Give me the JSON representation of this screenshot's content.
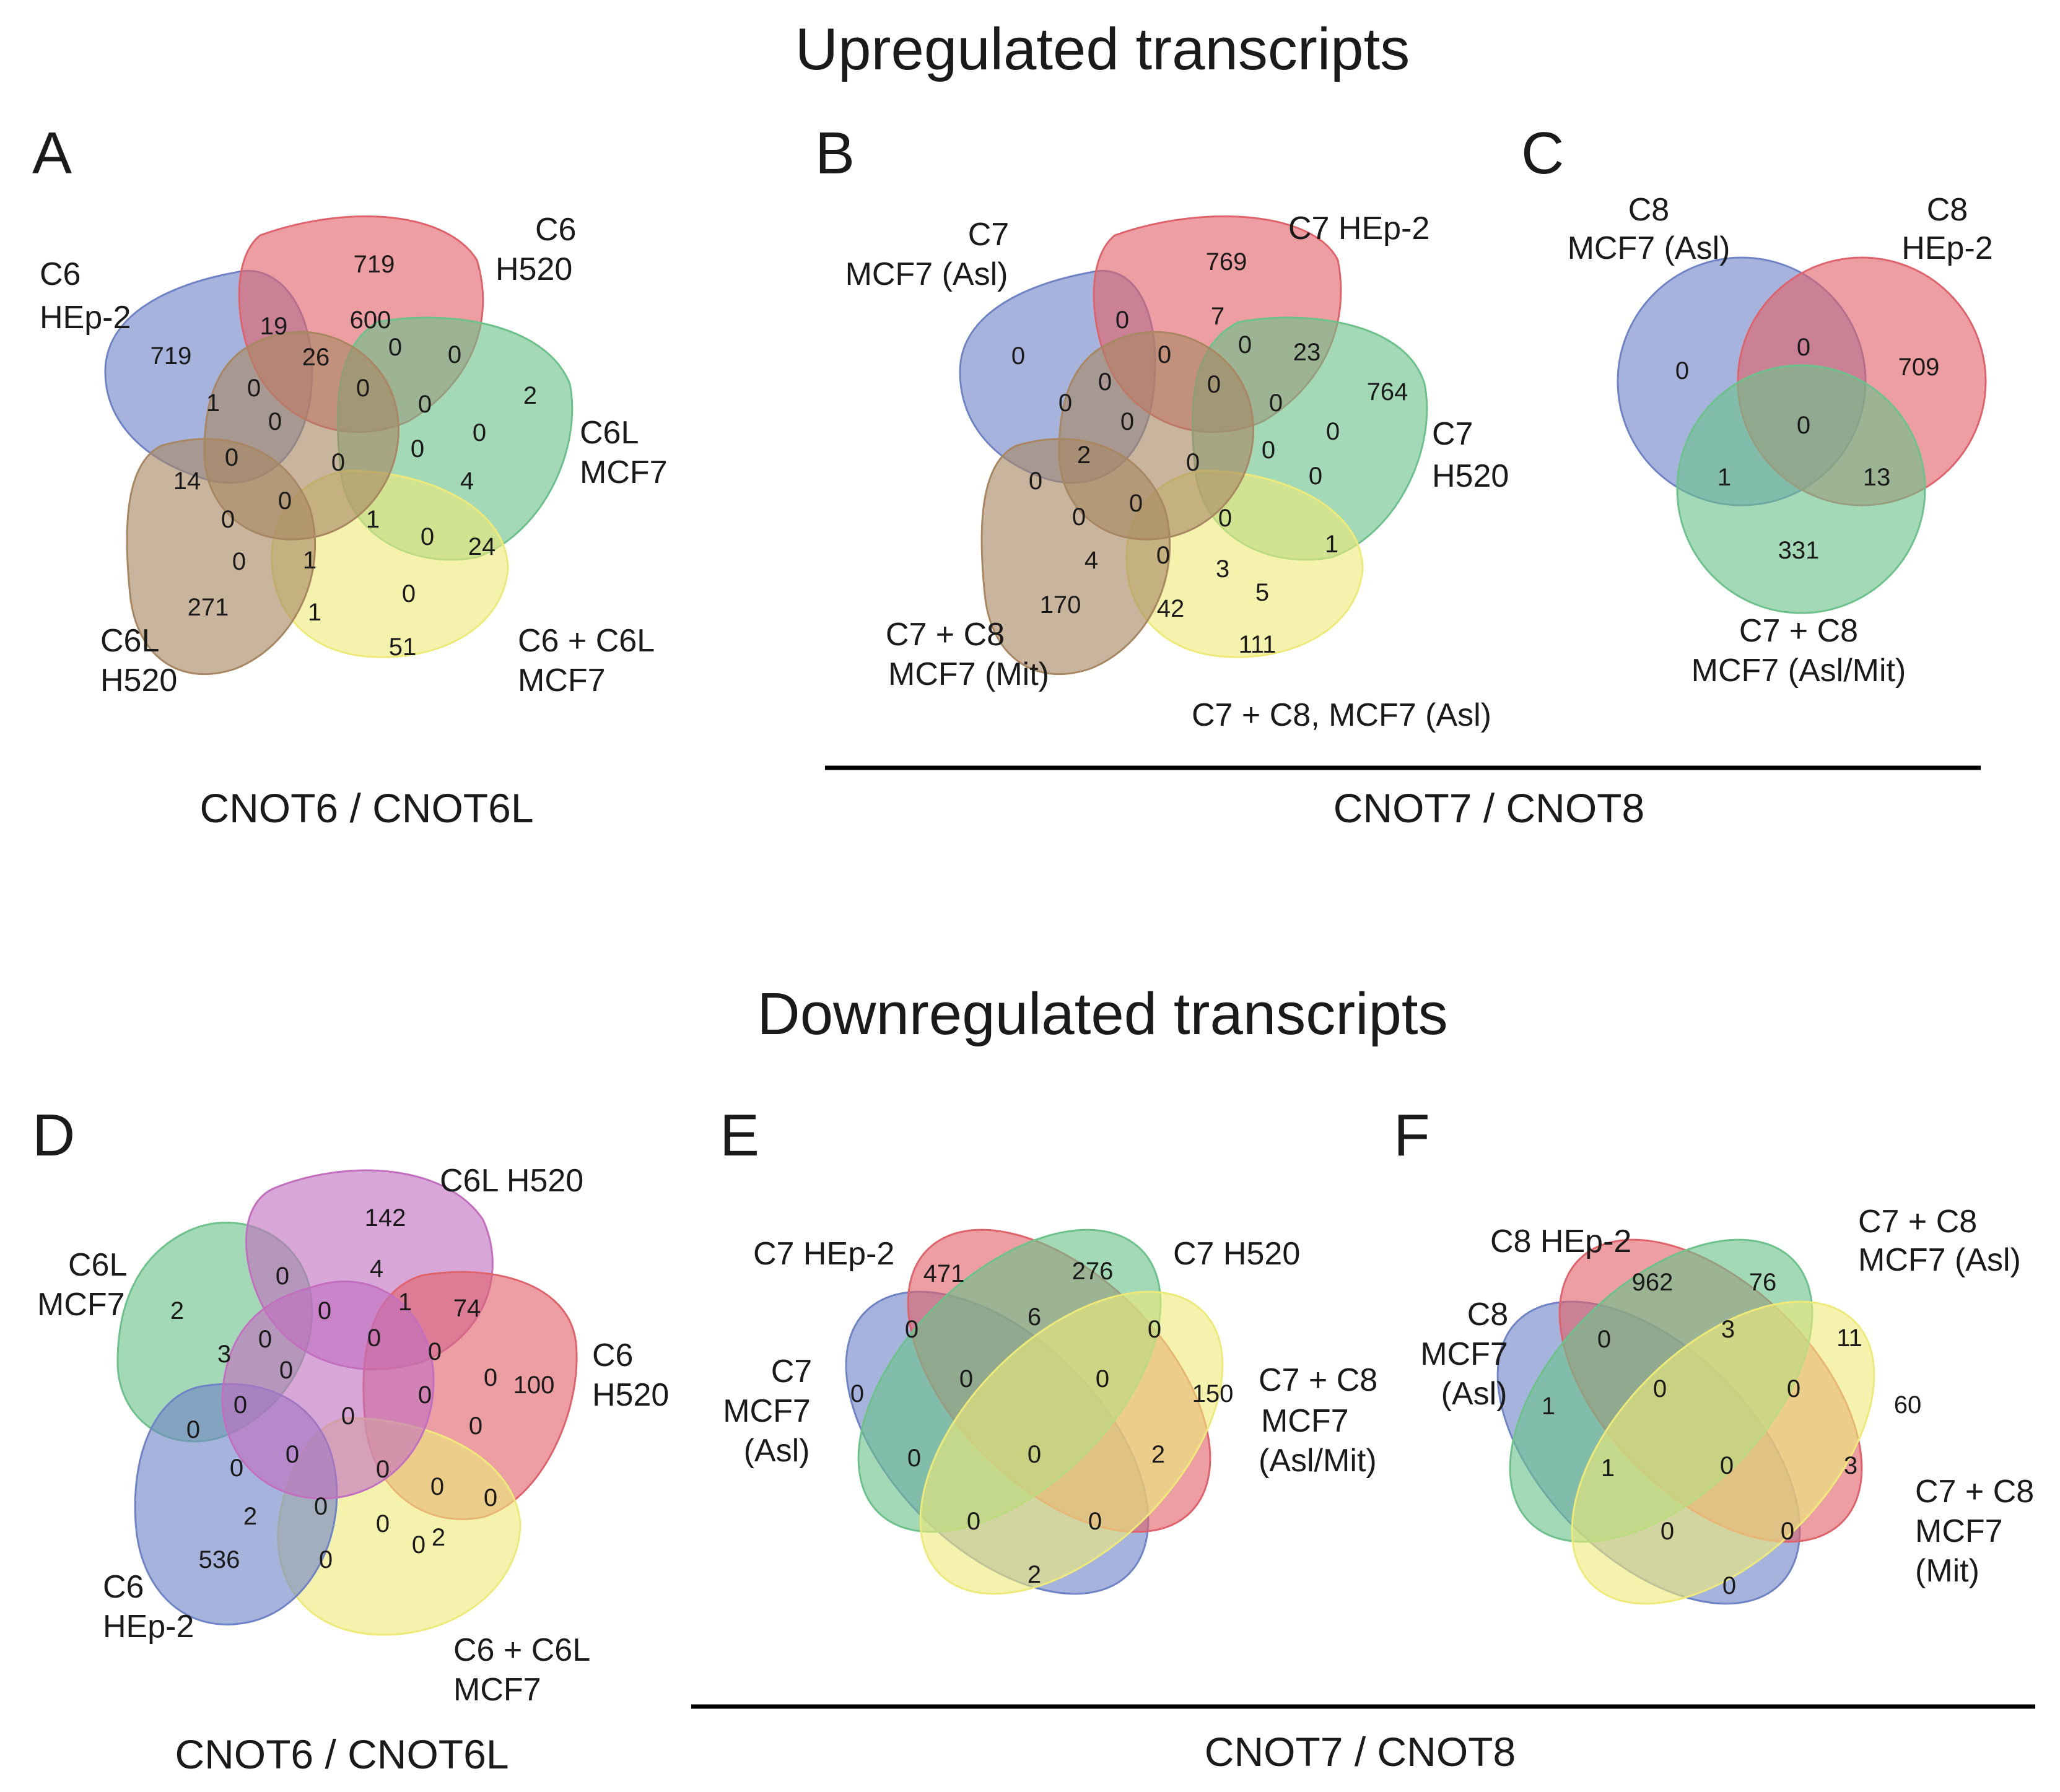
{
  "headings": {
    "up": "Upregulated transcripts",
    "down": "Downregulated transcripts"
  },
  "captions": {
    "a": "CNOT6 / CNOT6L",
    "bc": "CNOT7 / CNOT8",
    "d": "CNOT6 / CNOT6L",
    "ef": "CNOT7 / CNOT8"
  },
  "colors": {
    "blue": "#6f84c6",
    "red": "#e0636b",
    "green": "#6cc28a",
    "brown": "#a88762",
    "yellow": "#eeea7a",
    "purple": "#c26fc0"
  },
  "panels": {
    "A": {
      "letter": "A",
      "sets": [
        {
          "line1": "C6",
          "line2": "HEp-2"
        },
        {
          "line1": "C6",
          "line2": "H520"
        },
        {
          "line1": "C6L",
          "line2": "MCF7"
        },
        {
          "line1": "C6 + C6L",
          "line2": "MCF7"
        },
        {
          "line1": "C6L",
          "line2": "H520"
        }
      ],
      "counts": [
        "719",
        "719",
        "2",
        "24",
        "51",
        "271",
        "19",
        "600",
        "0",
        "0",
        "26",
        "0",
        "0",
        "1",
        "0",
        "0",
        "0",
        "0",
        "0",
        "4",
        "14",
        "0",
        "0",
        "0",
        "1",
        "0",
        "0",
        "1",
        "0",
        "1"
      ]
    },
    "B": {
      "letter": "B",
      "sets": [
        {
          "line1": "C7",
          "line2": "MCF7 (Asl)"
        },
        {
          "line1": "C7 HEp-2",
          "line2": ""
        },
        {
          "line1": "C7",
          "line2": "H520"
        },
        {
          "line1": "C7 + C8, MCF7 (Asl)",
          "line2": ""
        },
        {
          "line1": "C7 + C8",
          "line2": "MCF7 (Mit)"
        }
      ],
      "counts": [
        "0",
        "769",
        "764",
        "111",
        "170",
        "0",
        "7",
        "0",
        "23",
        "0",
        "0",
        "0",
        "0",
        "0",
        "0",
        "0",
        "0",
        "0",
        "2",
        "0",
        "0",
        "0",
        "0",
        "1",
        "4",
        "0",
        "3",
        "5",
        "42",
        "0"
      ]
    },
    "C": {
      "letter": "C",
      "sets": [
        {
          "line1": "C8",
          "line2": "MCF7 (Asl)"
        },
        {
          "line1": "C8",
          "line2": "HEp-2"
        },
        {
          "line1": "C7 + C8",
          "line2": "MCF7 (Asl/Mit)"
        }
      ],
      "counts": [
        "0",
        "709",
        "331",
        "0",
        "1",
        "13",
        "0"
      ]
    },
    "D": {
      "letter": "D",
      "sets": [
        {
          "line1": "C6L",
          "line2": "MCF7"
        },
        {
          "line1": "C6L H520",
          "line2": ""
        },
        {
          "line1": "C6",
          "line2": "H520"
        },
        {
          "line1": "C6 + C6L",
          "line2": "MCF7"
        },
        {
          "line1": "C6",
          "line2": "HEp-2"
        }
      ],
      "counts": [
        "2",
        "142",
        "100",
        "2",
        "536",
        "0",
        "4",
        "1",
        "74",
        "3",
        "0",
        "0",
        "0",
        "0",
        "0",
        "0",
        "0",
        "0",
        "0",
        "0",
        "0",
        "0",
        "0",
        "0",
        "2",
        "0",
        "0",
        "0",
        "0",
        "0"
      ]
    },
    "E": {
      "letter": "E",
      "sets": [
        {
          "line1": "C7 HEp-2",
          "line2": ""
        },
        {
          "line1": "C7 H520",
          "line2": ""
        },
        {
          "line1": "C7",
          "line2": "MCF7",
          "line3": "(Asl)"
        },
        {
          "line1": "C7 + C8",
          "line2": "MCF7",
          "line3": "(Asl/Mit)"
        }
      ],
      "counts": [
        "471",
        "276",
        "0",
        "150",
        "0",
        "6",
        "0",
        "0",
        "0",
        "0",
        "0",
        "2",
        "0",
        "0",
        "2"
      ]
    },
    "F": {
      "letter": "F",
      "sets": [
        {
          "line1": "C8 HEp-2",
          "line2": ""
        },
        {
          "line1": "C7 + C8",
          "line2": "MCF7 (Asl)"
        },
        {
          "line1": "C8",
          "line2": "MCF7",
          "line3": "(Asl)"
        },
        {
          "line1": "C7 + C8",
          "line2": "MCF7",
          "line3": "(Mit)"
        }
      ],
      "counts": [
        "962",
        "76",
        "1",
        "60",
        "0",
        "3",
        "11",
        "0",
        "0",
        "1",
        "0",
        "3",
        "0",
        "0",
        "0"
      ]
    }
  }
}
